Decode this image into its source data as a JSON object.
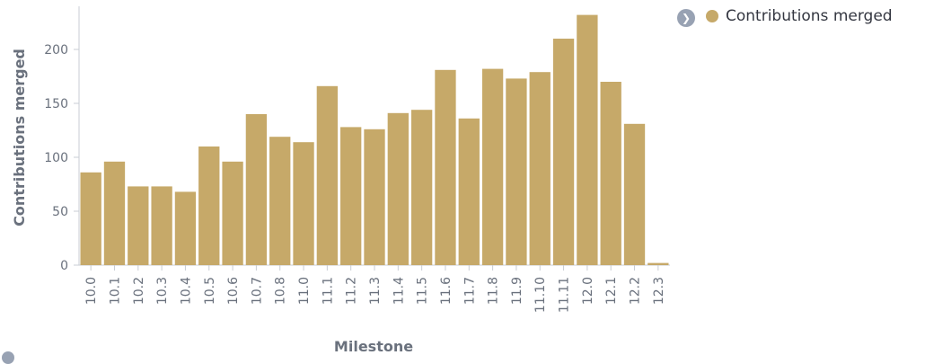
{
  "legend": {
    "toggle_icon": "chevron-right-icon",
    "label": "Contributions merged",
    "color": "#c6a969"
  },
  "colors": {
    "bar": "#c6a969",
    "axis": "#c9cdd4",
    "text": "#6a717d"
  },
  "chart_data": {
    "type": "bar",
    "categories": [
      "10.0",
      "10.1",
      "10.2",
      "10.3",
      "10.4",
      "10.5",
      "10.6",
      "10.7",
      "10.8",
      "11.0",
      "11.1",
      "11.2",
      "11.3",
      "11.4",
      "11.5",
      "11.6",
      "11.7",
      "11.8",
      "11.9",
      "11.10",
      "11.11",
      "12.0",
      "12.1",
      "12.2",
      "12.3"
    ],
    "series": [
      {
        "name": "Contributions merged",
        "values": [
          86,
          96,
          73,
          73,
          68,
          110,
          96,
          140,
          119,
          114,
          166,
          128,
          126,
          141,
          144,
          181,
          136,
          182,
          173,
          179,
          210,
          232,
          170,
          131,
          2
        ]
      }
    ],
    "xlabel": "Milestone",
    "ylabel": "Contributions merged",
    "ylim": [
      0,
      240
    ],
    "yticks": [
      0,
      50,
      100,
      150,
      200
    ],
    "grid": false,
    "legend_position": "top-right"
  }
}
